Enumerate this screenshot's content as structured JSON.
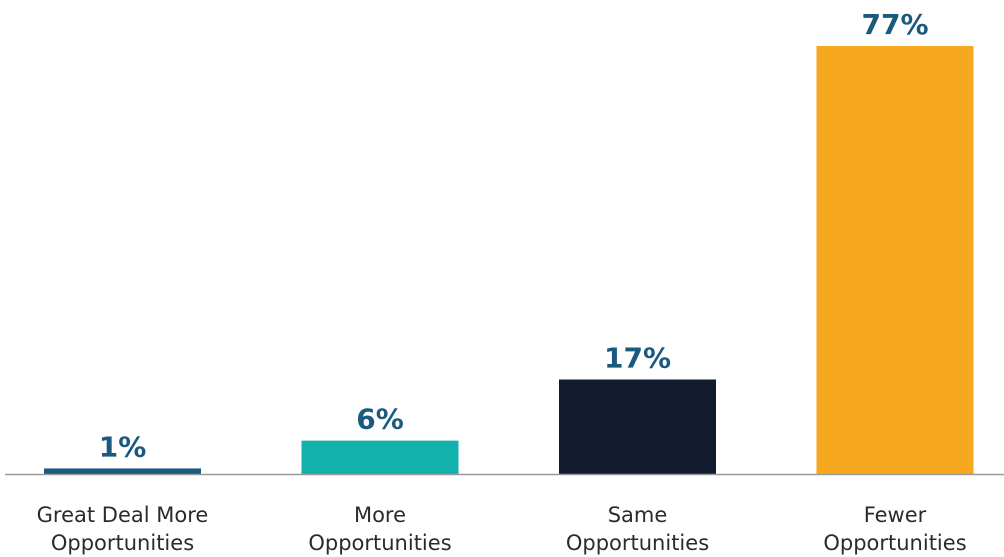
{
  "chart_data": {
    "type": "bar",
    "title": "",
    "xlabel": "",
    "ylabel": "",
    "ylim": [
      0,
      77
    ],
    "grid": false,
    "legend": "none",
    "categories": [
      [
        "Great Deal More",
        "Opportunities"
      ],
      [
        "More",
        "Opportunities"
      ],
      [
        "Same",
        "Opportunities"
      ],
      [
        "Fewer",
        "Opportunities"
      ]
    ],
    "values": [
      1,
      6,
      17,
      77
    ],
    "value_labels": [
      "1%",
      "6%",
      "17%",
      "77%"
    ],
    "colors": [
      "#1b5a80",
      "#13b1ab",
      "#131c2f",
      "#f6a81e"
    ],
    "label_color": "#1a5a7f",
    "axis_color": "#9a9a9a"
  }
}
